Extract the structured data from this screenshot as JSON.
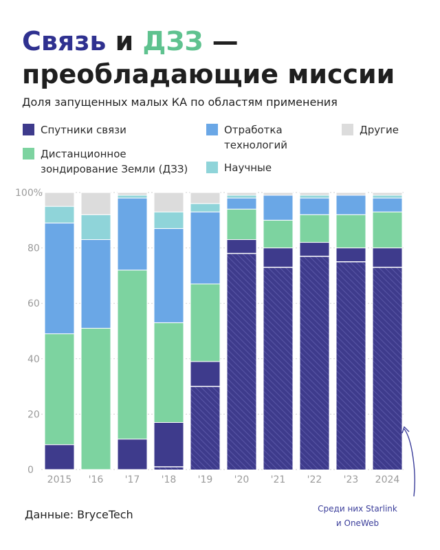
{
  "title": {
    "word1": "Связь",
    "word2": " и ",
    "word3": "ДЗЗ",
    "rest": " — преобладающие миссии"
  },
  "subtitle": "Доля запущенных малых КА по областям применения",
  "legend": [
    {
      "label": "Спутники связи",
      "color": "#3e3b8c"
    },
    {
      "label": "Дистанционное\nзондирование Земли (ДЗЗ)",
      "color": "#7dd3a0"
    },
    {
      "label": "Отработка\nтехнологий",
      "color": "#6aa7e6"
    },
    {
      "label": "Научные",
      "color": "#8fd4d9"
    },
    {
      "label": "Другие",
      "color": "#dcdcdc"
    }
  ],
  "chart_data": {
    "type": "bar",
    "stacked": true,
    "categories": [
      "2015",
      "'16",
      "'17",
      "'18",
      "'19",
      "'20",
      "'21",
      "'22",
      "'23",
      "2024"
    ],
    "ylim": [
      0,
      100
    ],
    "yticks": [
      0,
      20,
      40,
      60,
      80
    ],
    "ytick_top_label": "100%",
    "series": [
      {
        "name": "Спутники связи",
        "color": "#3e3b8c",
        "values": [
          9,
          0,
          11,
          17,
          39,
          83,
          80,
          82,
          80,
          80
        ]
      },
      {
        "name": "Дистанционное зондирование Земли (ДЗЗ)",
        "color": "#7dd3a0",
        "values": [
          40,
          51,
          61,
          36,
          28,
          11,
          10,
          10,
          12,
          13
        ]
      },
      {
        "name": "Отработка технологий",
        "color": "#6aa7e6",
        "values": [
          40,
          32,
          26,
          34,
          26,
          4,
          9,
          6,
          7,
          5
        ]
      },
      {
        "name": "Научные",
        "color": "#8fd4d9",
        "values": [
          6,
          9,
          1,
          6,
          3,
          1,
          0,
          1,
          0,
          1
        ]
      },
      {
        "name": "Другие",
        "color": "#dcdcdc",
        "values": [
          5,
          8,
          1,
          7,
          4,
          1,
          1,
          1,
          1,
          1
        ]
      }
    ],
    "starlink_oneweb_values": [
      0,
      0,
      0,
      1,
      30,
      78,
      73,
      77,
      75,
      73
    ],
    "annotation": "Среди них Starlink\nи OneWeb"
  },
  "source": "Данные: BryceTech"
}
